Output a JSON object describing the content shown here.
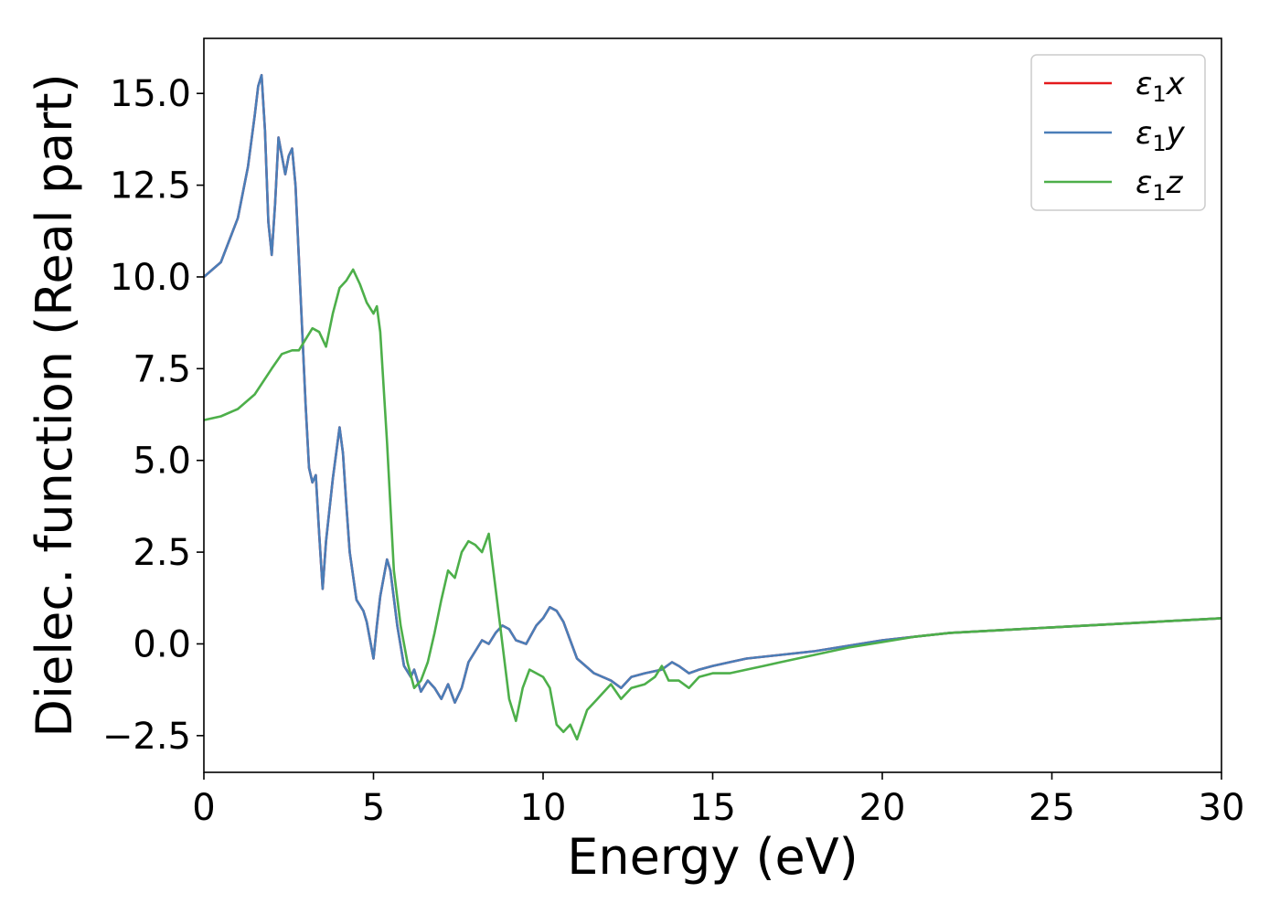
{
  "chart_data": {
    "type": "line",
    "xlabel": "Energy (eV)",
    "ylabel": "Dielec. function (Real part)",
    "xlim": [
      0,
      30
    ],
    "ylim": [
      -3.5,
      16.5
    ],
    "xticks": [
      0,
      5,
      10,
      15,
      20,
      25,
      30
    ],
    "xtick_labels": [
      "0",
      "5",
      "10",
      "15",
      "20",
      "25",
      "30"
    ],
    "yticks": [
      -2.5,
      0,
      2.5,
      5,
      7.5,
      10,
      12.5,
      15
    ],
    "ytick_labels": [
      "−2.5",
      "0.0",
      "2.5",
      "5.0",
      "7.5",
      "10.0",
      "12.5",
      "15.0"
    ],
    "grid": false,
    "legend_position": "top-right",
    "series": [
      {
        "name_base": "ε",
        "name_sub": "1",
        "name_suffix": "x",
        "color": "#e41a1c",
        "x": [
          0,
          0.5,
          1.0,
          1.3,
          1.5,
          1.6,
          1.7,
          1.8,
          1.9,
          2.0,
          2.1,
          2.2,
          2.3,
          2.4,
          2.5,
          2.6,
          2.7,
          2.8,
          2.9,
          3.0,
          3.1,
          3.2,
          3.3,
          3.4,
          3.5,
          3.6,
          3.8,
          4.0,
          4.1,
          4.2,
          4.3,
          4.5,
          4.7,
          4.8,
          5.0,
          5.1,
          5.2,
          5.4,
          5.5,
          5.7,
          5.9,
          6.1,
          6.2,
          6.4,
          6.6,
          6.8,
          7.0,
          7.2,
          7.4,
          7.6,
          7.8,
          8.0,
          8.2,
          8.4,
          8.6,
          8.8,
          9.0,
          9.2,
          9.5,
          9.8,
          10.0,
          10.2,
          10.4,
          10.6,
          10.8,
          11.0,
          11.5,
          12.0,
          12.3,
          12.6,
          13.0,
          13.5,
          13.8,
          14.0,
          14.3,
          14.6,
          15.0,
          15.5,
          16.0,
          17.0,
          18.0,
          19.0,
          20.0,
          21.0,
          22.0,
          23.0,
          24.0,
          25.0,
          26.0,
          27.0,
          28.0,
          29.0,
          30.0
        ],
        "y": [
          10.0,
          10.4,
          11.6,
          13.0,
          14.4,
          15.2,
          15.5,
          14.0,
          11.5,
          10.6,
          12.0,
          13.8,
          13.3,
          12.8,
          13.3,
          13.5,
          12.5,
          10.5,
          8.5,
          6.5,
          4.8,
          4.4,
          4.6,
          3.0,
          1.5,
          2.8,
          4.5,
          5.9,
          5.2,
          3.8,
          2.5,
          1.2,
          0.9,
          0.6,
          -0.4,
          0.5,
          1.3,
          2.3,
          2.0,
          0.5,
          -0.6,
          -0.9,
          -0.7,
          -1.3,
          -1.0,
          -1.2,
          -1.5,
          -1.1,
          -1.6,
          -1.2,
          -0.5,
          -0.2,
          0.1,
          0.0,
          0.3,
          0.5,
          0.4,
          0.1,
          0.0,
          0.5,
          0.7,
          1.0,
          0.9,
          0.6,
          0.1,
          -0.4,
          -0.8,
          -1.0,
          -1.2,
          -0.9,
          -0.8,
          -0.7,
          -0.5,
          -0.6,
          -0.8,
          -0.7,
          -0.6,
          -0.5,
          -0.4,
          -0.3,
          -0.2,
          -0.05,
          0.1,
          0.2,
          0.3,
          0.35,
          0.4,
          0.45,
          0.5,
          0.55,
          0.6,
          0.65,
          0.7
        ]
      },
      {
        "name_base": "ε",
        "name_sub": "1",
        "name_suffix": "y",
        "color": "#4a7eb8",
        "x": [
          0,
          0.5,
          1.0,
          1.3,
          1.5,
          1.6,
          1.7,
          1.8,
          1.9,
          2.0,
          2.1,
          2.2,
          2.3,
          2.4,
          2.5,
          2.6,
          2.7,
          2.8,
          2.9,
          3.0,
          3.1,
          3.2,
          3.3,
          3.4,
          3.5,
          3.6,
          3.8,
          4.0,
          4.1,
          4.2,
          4.3,
          4.5,
          4.7,
          4.8,
          5.0,
          5.1,
          5.2,
          5.4,
          5.5,
          5.7,
          5.9,
          6.1,
          6.2,
          6.4,
          6.6,
          6.8,
          7.0,
          7.2,
          7.4,
          7.6,
          7.8,
          8.0,
          8.2,
          8.4,
          8.6,
          8.8,
          9.0,
          9.2,
          9.5,
          9.8,
          10.0,
          10.2,
          10.4,
          10.6,
          10.8,
          11.0,
          11.5,
          12.0,
          12.3,
          12.6,
          13.0,
          13.5,
          13.8,
          14.0,
          14.3,
          14.6,
          15.0,
          15.5,
          16.0,
          17.0,
          18.0,
          19.0,
          20.0,
          21.0,
          22.0,
          23.0,
          24.0,
          25.0,
          26.0,
          27.0,
          28.0,
          29.0,
          30.0
        ],
        "y": [
          10.0,
          10.4,
          11.6,
          13.0,
          14.4,
          15.2,
          15.5,
          14.0,
          11.5,
          10.6,
          12.0,
          13.8,
          13.3,
          12.8,
          13.3,
          13.5,
          12.5,
          10.5,
          8.5,
          6.5,
          4.8,
          4.4,
          4.6,
          3.0,
          1.5,
          2.8,
          4.5,
          5.9,
          5.2,
          3.8,
          2.5,
          1.2,
          0.9,
          0.6,
          -0.4,
          0.5,
          1.3,
          2.3,
          2.0,
          0.5,
          -0.6,
          -0.9,
          -0.7,
          -1.3,
          -1.0,
          -1.2,
          -1.5,
          -1.1,
          -1.6,
          -1.2,
          -0.5,
          -0.2,
          0.1,
          0.0,
          0.3,
          0.5,
          0.4,
          0.1,
          0.0,
          0.5,
          0.7,
          1.0,
          0.9,
          0.6,
          0.1,
          -0.4,
          -0.8,
          -1.0,
          -1.2,
          -0.9,
          -0.8,
          -0.7,
          -0.5,
          -0.6,
          -0.8,
          -0.7,
          -0.6,
          -0.5,
          -0.4,
          -0.3,
          -0.2,
          -0.05,
          0.1,
          0.2,
          0.3,
          0.35,
          0.4,
          0.45,
          0.5,
          0.55,
          0.6,
          0.65,
          0.7
        ]
      },
      {
        "name_base": "ε",
        "name_sub": "1",
        "name_suffix": "z",
        "color": "#4daf4a",
        "x": [
          0,
          0.5,
          1.0,
          1.5,
          2.0,
          2.3,
          2.6,
          2.8,
          3.0,
          3.2,
          3.4,
          3.6,
          3.8,
          4.0,
          4.2,
          4.4,
          4.6,
          4.8,
          5.0,
          5.1,
          5.2,
          5.4,
          5.6,
          5.8,
          6.0,
          6.2,
          6.4,
          6.6,
          6.8,
          7.0,
          7.2,
          7.4,
          7.6,
          7.8,
          8.0,
          8.2,
          8.4,
          8.6,
          8.8,
          9.0,
          9.2,
          9.4,
          9.6,
          9.8,
          10.0,
          10.2,
          10.4,
          10.6,
          10.8,
          11.0,
          11.3,
          11.6,
          12.0,
          12.3,
          12.6,
          13.0,
          13.3,
          13.5,
          13.7,
          14.0,
          14.3,
          14.6,
          15.0,
          15.5,
          16.0,
          16.5,
          17.0,
          17.5,
          18.0,
          19.0,
          20.0,
          21.0,
          22.0,
          23.0,
          24.0,
          25.0,
          26.0,
          27.0,
          28.0,
          29.0,
          30.0
        ],
        "y": [
          6.1,
          6.2,
          6.4,
          6.8,
          7.5,
          7.9,
          8.0,
          8.0,
          8.3,
          8.6,
          8.5,
          8.1,
          9.0,
          9.7,
          9.9,
          10.2,
          9.8,
          9.3,
          9.0,
          9.2,
          8.5,
          5.5,
          2.0,
          0.5,
          -0.5,
          -1.2,
          -1.0,
          -0.5,
          0.3,
          1.2,
          2.0,
          1.8,
          2.5,
          2.8,
          2.7,
          2.5,
          3.0,
          1.5,
          0.0,
          -1.5,
          -2.1,
          -1.2,
          -0.7,
          -0.8,
          -0.9,
          -1.2,
          -2.2,
          -2.4,
          -2.2,
          -2.6,
          -1.8,
          -1.5,
          -1.1,
          -1.5,
          -1.2,
          -1.1,
          -0.9,
          -0.6,
          -1.0,
          -1.0,
          -1.2,
          -0.9,
          -0.8,
          -0.8,
          -0.7,
          -0.6,
          -0.5,
          -0.4,
          -0.3,
          -0.1,
          0.05,
          0.2,
          0.3,
          0.35,
          0.4,
          0.45,
          0.5,
          0.55,
          0.6,
          0.65,
          0.7
        ]
      }
    ]
  }
}
